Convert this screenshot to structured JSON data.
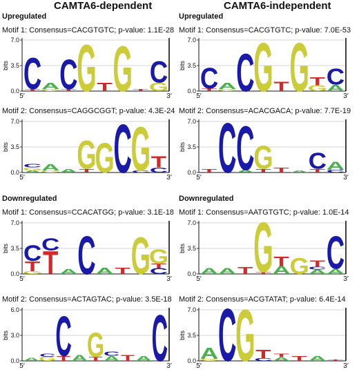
{
  "columns": [
    {
      "title": "CAMTA6-dependent"
    },
    {
      "title": "CAMTA6-independent"
    }
  ],
  "sections": [
    "Upregulated",
    "Downregulated"
  ],
  "axis": {
    "ylabel": "bits",
    "five": "5′",
    "three": "3′"
  },
  "colors": {
    "A": "#4caf50",
    "C": "#1a1aa8",
    "G": "#cccc3a",
    "T": "#d62828"
  },
  "panels": [
    {
      "col": 0,
      "row": 0,
      "label": "Motif 1: Consensus=CACGTGTC; p-value: 1.1E-28",
      "ymax": 7.0,
      "ticks": [
        0.0,
        3.5,
        7.0
      ],
      "stacks": [
        [
          [
            "T",
            0.3
          ],
          [
            "C",
            4.4
          ]
        ],
        [
          [
            "G",
            0.3
          ],
          [
            "A",
            0.9
          ]
        ],
        [
          [
            "T",
            0.3
          ],
          [
            "C",
            4.2
          ]
        ],
        [
          [
            "G",
            6.6
          ]
        ],
        [
          [
            "T",
            1.2
          ]
        ],
        [
          [
            "G",
            6.4
          ]
        ],
        [
          [
            "T",
            0.3
          ]
        ],
        [
          [
            "G",
            1.2
          ],
          [
            "C",
            3.0
          ]
        ]
      ]
    },
    {
      "col": 0,
      "row": 1,
      "label": "Motif 2: Consensus=CAGGCGGT; p-value: 4.3E-24",
      "ymax": 7.0,
      "ticks": [
        0.0,
        3.5,
        7.0
      ],
      "stacks": [
        [
          [
            "A",
            0.3
          ],
          [
            "G",
            0.4
          ],
          [
            "C",
            0.5
          ]
        ],
        [
          [
            "G",
            0.3
          ],
          [
            "A",
            0.9
          ]
        ],
        [
          [
            "A",
            0.5
          ]
        ],
        [
          [
            "T",
            0.5
          ],
          [
            "G",
            4.0
          ]
        ],
        [
          [
            "G",
            4.2
          ]
        ],
        [
          [
            "C",
            6.8
          ]
        ],
        [
          [
            "C",
            0.3
          ],
          [
            "G",
            6.2
          ]
        ],
        [
          [
            "C",
            0.7
          ],
          [
            "T",
            1.6
          ]
        ]
      ]
    },
    {
      "col": 0,
      "row": 2,
      "label": "Motif 1: Consensus=CCACATGG; p-value: 3.1E-18",
      "ymax": 7.0,
      "ticks": [
        0.0,
        3.5,
        7.0
      ],
      "stacks": [
        [
          [
            "G",
            0.4
          ],
          [
            "T",
            1.4
          ],
          [
            "C",
            2.2
          ]
        ],
        [
          [
            "T",
            3.2
          ],
          [
            "C",
            1.7
          ]
        ],
        [
          [
            "A",
            0.7
          ]
        ],
        [
          [
            "C",
            5.4
          ]
        ],
        [
          [
            "A",
            0.9
          ]
        ],
        [
          [
            "T",
            0.9
          ]
        ],
        [
          [
            "G",
            5.2
          ]
        ],
        [
          [
            "C",
            0.8
          ],
          [
            "T",
            0.6
          ],
          [
            "G",
            2.0
          ]
        ]
      ]
    },
    {
      "col": 0,
      "row": 3,
      "label": "Motif 2: Consensus=ACTAGTAC; p-value: 3.5E-18",
      "ymax": 6.0,
      "ticks": [
        0.0,
        3.0,
        6.0
      ],
      "stacks": [
        [
          [
            "A",
            0.4
          ]
        ],
        [
          [
            "G",
            0.5
          ],
          [
            "C",
            0.4
          ]
        ],
        [
          [
            "T",
            0.6
          ],
          [
            "C",
            4.8
          ]
        ],
        [
          [
            "A",
            0.7
          ]
        ],
        [
          [
            "T",
            0.5
          ],
          [
            "G",
            2.9
          ]
        ],
        [
          [
            "A",
            0.6
          ],
          [
            "C",
            0.5
          ]
        ],
        [
          [
            "T",
            0.7
          ]
        ],
        [
          [
            "A",
            0.6
          ]
        ],
        [
          [
            "C",
            5.6
          ]
        ]
      ]
    },
    {
      "col": 1,
      "row": 0,
      "label": "Motif 1: Consensus=CACGTGTC; p-value: 7.0E-53",
      "ymax": 7.0,
      "ticks": [
        0.0,
        3.5,
        7.0
      ],
      "stacks": [
        [
          [
            "T",
            0.4
          ],
          [
            "C",
            2.9
          ]
        ],
        [
          [
            "G",
            0.3
          ],
          [
            "A",
            0.9
          ]
        ],
        [
          [
            "C",
            5.3
          ]
        ],
        [
          [
            "G",
            6.8
          ]
        ],
        [
          [
            "T",
            1.3
          ]
        ],
        [
          [
            "G",
            6.8
          ]
        ],
        [
          [
            "G",
            0.8
          ],
          [
            "T",
            1.1
          ]
        ],
        [
          [
            "A",
            0.9
          ],
          [
            "C",
            2.3
          ]
        ]
      ]
    },
    {
      "col": 1,
      "row": 1,
      "label": "Motif 2: Consensus=ACACGACA; p-value: 7.7E-19",
      "ymax": 7.0,
      "ticks": [
        0.0,
        3.5,
        7.0
      ],
      "stacks": [
        [
          [
            "T",
            0.5
          ]
        ],
        [
          [
            "C",
            7.0
          ]
        ],
        [
          [
            "A",
            0.4
          ],
          [
            "C",
            6.2
          ]
        ],
        [
          [
            "T",
            0.5
          ],
          [
            "G",
            3.3
          ]
        ],
        [
          [
            "T",
            0.7
          ]
        ],
        [
          [
            "A",
            0.3
          ]
        ],
        [
          [
            "T",
            0.5
          ],
          [
            "C",
            2.3
          ]
        ],
        [
          [
            "C",
            0.4
          ],
          [
            "A",
            1.1
          ]
        ]
      ]
    },
    {
      "col": 1,
      "row": 2,
      "label": "Motif 1:  Consensus=AATGTGTC; p-value: 1.0E-14",
      "ymax": 7.0,
      "ticks": [
        0.0,
        3.5,
        7.0
      ],
      "stacks": [
        [
          [
            "A",
            0.8
          ]
        ],
        [
          [
            "A",
            0.8
          ]
        ],
        [
          [
            "T",
            1.0
          ]
        ],
        [
          [
            "T",
            0.3
          ],
          [
            "G",
            7.0
          ]
        ],
        [
          [
            "A",
            1.1
          ],
          [
            "T",
            1.3
          ]
        ],
        [
          [
            "G",
            2.3
          ]
        ],
        [
          [
            "A",
            0.6
          ],
          [
            "C",
            0.4
          ],
          [
            "T",
            0.9
          ]
        ],
        [
          [
            "A",
            0.7
          ],
          [
            "C",
            4.6
          ]
        ]
      ]
    },
    {
      "col": 1,
      "row": 3,
      "label": "Motif 2: Consensus=ACGTATAT; p-value: 6.4E-14",
      "ymax": 7.0,
      "ticks": [
        0.0,
        3.5,
        7.0
      ],
      "stacks": [
        [
          [
            "G",
            0.3
          ],
          [
            "A",
            1.6
          ]
        ],
        [
          [
            "C",
            7.4
          ]
        ],
        [
          [
            "G",
            7.3
          ]
        ],
        [
          [
            "C",
            0.4
          ],
          [
            "T",
            1.2
          ]
        ],
        [
          [
            "A",
            0.5
          ],
          [
            "T",
            0.5
          ]
        ],
        [
          [
            "T",
            0.7
          ]
        ],
        [
          [
            "A",
            0.7
          ]
        ],
        [
          [
            "T",
            0.2
          ]
        ]
      ]
    }
  ]
}
